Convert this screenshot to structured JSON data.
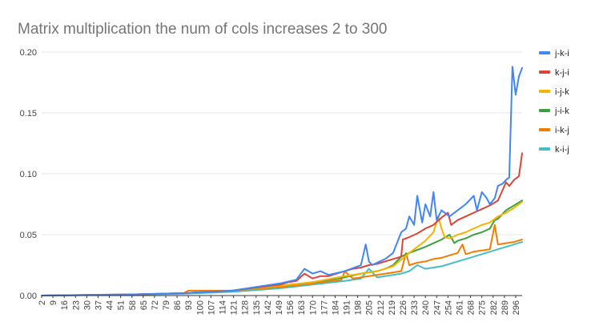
{
  "chart_data": {
    "type": "line",
    "title": "Matrix multiplication the num of cols increases 2 to 300",
    "xlabel": "",
    "ylabel": "",
    "x_range": [
      2,
      300
    ],
    "ylim": [
      0,
      0.2
    ],
    "y_ticks": [
      "0.00",
      "0.05",
      "0.10",
      "0.15",
      "0.20"
    ],
    "x_ticks": [
      2,
      9,
      16,
      23,
      30,
      37,
      44,
      51,
      58,
      65,
      72,
      79,
      86,
      93,
      100,
      107,
      114,
      121,
      128,
      135,
      142,
      149,
      156,
      163,
      170,
      177,
      184,
      191,
      198,
      205,
      212,
      219,
      226,
      233,
      240,
      247,
      254,
      261,
      268,
      275,
      282,
      289,
      296
    ],
    "grid": "horizontal",
    "legend_position": "right",
    "colors": {
      "j-k-i": "#4285f4",
      "k-j-i": "#db4437",
      "i-j-k": "#f4b400",
      "j-i-k": "#3aa23a",
      "i-k-j": "#f57c00",
      "k-i-j": "#46bdc6"
    },
    "series": [
      {
        "name": "j-k-i",
        "x": [
          2,
          30,
          60,
          90,
          120,
          150,
          160,
          165,
          170,
          175,
          180,
          190,
          200,
          203,
          205,
          207,
          210,
          215,
          220,
          225,
          228,
          230,
          233,
          235,
          238,
          240,
          243,
          245,
          247,
          250,
          255,
          260,
          265,
          270,
          272,
          275,
          278,
          280,
          283,
          285,
          288,
          290,
          292,
          294,
          296,
          298,
          300
        ],
        "y": [
          0,
          0.0005,
          0.001,
          0.002,
          0.004,
          0.01,
          0.013,
          0.022,
          0.018,
          0.02,
          0.017,
          0.02,
          0.025,
          0.042,
          0.028,
          0.025,
          0.027,
          0.03,
          0.035,
          0.052,
          0.055,
          0.065,
          0.058,
          0.082,
          0.06,
          0.075,
          0.065,
          0.085,
          0.062,
          0.07,
          0.065,
          0.07,
          0.075,
          0.082,
          0.07,
          0.085,
          0.08,
          0.075,
          0.08,
          0.09,
          0.092,
          0.095,
          0.097,
          0.188,
          0.165,
          0.18,
          0.187
        ]
      },
      {
        "name": "k-j-i",
        "x": [
          2,
          30,
          60,
          90,
          120,
          150,
          155,
          160,
          165,
          170,
          175,
          180,
          185,
          190,
          195,
          200,
          205,
          210,
          215,
          220,
          225,
          226,
          230,
          235,
          240,
          245,
          250,
          252,
          254,
          256,
          260,
          265,
          270,
          275,
          280,
          285,
          290,
          292,
          295,
          298,
          300
        ],
        "y": [
          0,
          0.0005,
          0.001,
          0.002,
          0.004,
          0.009,
          0.011,
          0.012,
          0.018,
          0.014,
          0.016,
          0.016,
          0.018,
          0.02,
          0.022,
          0.023,
          0.025,
          0.026,
          0.028,
          0.03,
          0.032,
          0.046,
          0.048,
          0.051,
          0.055,
          0.058,
          0.064,
          0.066,
          0.068,
          0.058,
          0.062,
          0.065,
          0.068,
          0.071,
          0.074,
          0.078,
          0.093,
          0.09,
          0.095,
          0.098,
          0.117
        ]
      },
      {
        "name": "i-j-k",
        "x": [
          2,
          30,
          60,
          90,
          120,
          150,
          170,
          190,
          200,
          210,
          220,
          230,
          240,
          245,
          248,
          250,
          252,
          255,
          260,
          265,
          270,
          275,
          280,
          285,
          290,
          295,
          300
        ],
        "y": [
          0,
          0.0004,
          0.0009,
          0.002,
          0.004,
          0.008,
          0.011,
          0.016,
          0.018,
          0.02,
          0.024,
          0.035,
          0.045,
          0.052,
          0.065,
          0.055,
          0.048,
          0.047,
          0.05,
          0.052,
          0.055,
          0.058,
          0.06,
          0.065,
          0.068,
          0.072,
          0.077
        ]
      },
      {
        "name": "j-i-k",
        "x": [
          2,
          30,
          60,
          90,
          120,
          150,
          170,
          190,
          200,
          210,
          215,
          220,
          225,
          230,
          240,
          250,
          255,
          258,
          260,
          265,
          270,
          275,
          280,
          283,
          285,
          290,
          295,
          300
        ],
        "y": [
          0,
          0.0004,
          0.0009,
          0.002,
          0.004,
          0.008,
          0.011,
          0.015,
          0.018,
          0.02,
          0.022,
          0.025,
          0.032,
          0.035,
          0.04,
          0.046,
          0.05,
          0.043,
          0.045,
          0.047,
          0.05,
          0.052,
          0.055,
          0.062,
          0.063,
          0.07,
          0.074,
          0.078
        ]
      },
      {
        "name": "i-k-j",
        "x": [
          2,
          30,
          60,
          90,
          93,
          120,
          150,
          170,
          188,
          190,
          195,
          200,
          210,
          220,
          225,
          228,
          230,
          235,
          240,
          245,
          250,
          255,
          260,
          263,
          265,
          270,
          280,
          283,
          285,
          290,
          295,
          300
        ],
        "y": [
          0,
          0.0003,
          0.0008,
          0.002,
          0.004,
          0.004,
          0.007,
          0.01,
          0.013,
          0.02,
          0.014,
          0.015,
          0.017,
          0.019,
          0.02,
          0.035,
          0.025,
          0.027,
          0.028,
          0.03,
          0.031,
          0.033,
          0.035,
          0.042,
          0.034,
          0.036,
          0.038,
          0.058,
          0.042,
          0.043,
          0.044,
          0.046
        ]
      },
      {
        "name": "k-i-j",
        "x": [
          2,
          30,
          60,
          90,
          120,
          150,
          170,
          190,
          200,
          205,
          210,
          220,
          225,
          230,
          235,
          240,
          250,
          255,
          260,
          265,
          270,
          275,
          280,
          285,
          290,
          295,
          300
        ],
        "y": [
          0,
          0.0003,
          0.0008,
          0.0015,
          0.003,
          0.006,
          0.009,
          0.012,
          0.014,
          0.022,
          0.015,
          0.017,
          0.018,
          0.02,
          0.025,
          0.022,
          0.024,
          0.026,
          0.028,
          0.03,
          0.032,
          0.034,
          0.036,
          0.038,
          0.04,
          0.042,
          0.044
        ]
      }
    ]
  }
}
